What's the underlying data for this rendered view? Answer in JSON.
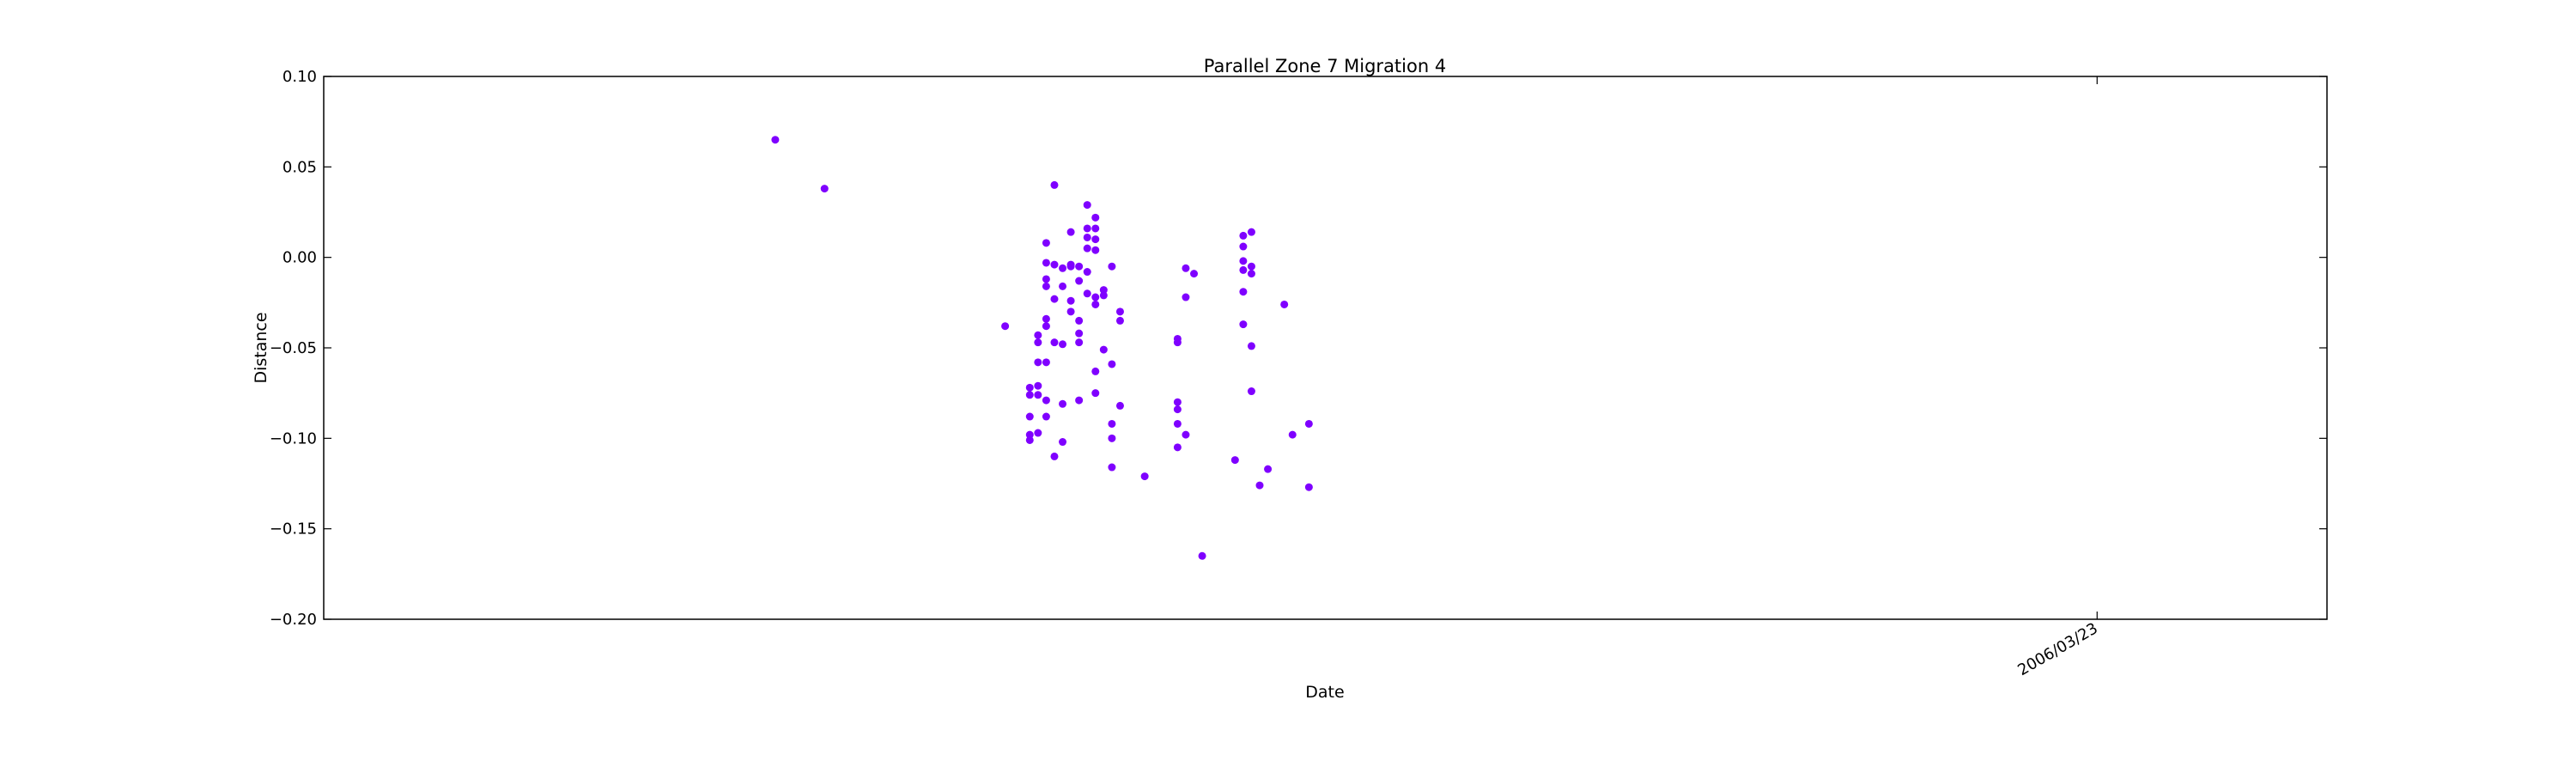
{
  "chart_data": {
    "type": "scatter",
    "title": "Parallel Zone 7 Migration 4",
    "xlabel": "Date",
    "ylabel": "Distance",
    "ylim": [
      -0.2,
      0.1
    ],
    "yticks": [
      0.1,
      0.05,
      0.0,
      -0.05,
      -0.1,
      -0.15,
      -0.2
    ],
    "ytick_labels": [
      "0.10",
      "0.05",
      "0.00",
      "−0.05",
      "−0.10",
      "−0.15",
      "−0.20"
    ],
    "xlim": [
      "2005-08-19",
      "2006-04-20"
    ],
    "xticks": [
      "2006-03-23"
    ],
    "xtick_labels": [
      "2006/03/23"
    ],
    "grid": false,
    "marker_color": "#7f00ff",
    "series": [
      {
        "points": [
          [
            "2005-10-13",
            0.065
          ],
          [
            "2005-10-19",
            0.038
          ],
          [
            "2005-11-10",
            -0.038
          ],
          [
            "2005-11-13",
            -0.072
          ],
          [
            "2005-11-13",
            -0.076
          ],
          [
            "2005-11-13",
            -0.088
          ],
          [
            "2005-11-13",
            -0.098
          ],
          [
            "2005-11-13",
            -0.101
          ],
          [
            "2005-11-14",
            -0.076
          ],
          [
            "2005-11-14",
            -0.071
          ],
          [
            "2005-11-14",
            -0.058
          ],
          [
            "2005-11-14",
            -0.047
          ],
          [
            "2005-11-14",
            -0.043
          ],
          [
            "2005-11-14",
            -0.097
          ],
          [
            "2005-11-15",
            -0.079
          ],
          [
            "2005-11-15",
            -0.058
          ],
          [
            "2005-11-15",
            -0.088
          ],
          [
            "2005-11-15",
            0.008
          ],
          [
            "2005-11-15",
            -0.012
          ],
          [
            "2005-11-15",
            -0.016
          ],
          [
            "2005-11-15",
            -0.003
          ],
          [
            "2005-11-15",
            -0.034
          ],
          [
            "2005-11-15",
            -0.038
          ],
          [
            "2005-11-16",
            -0.004
          ],
          [
            "2005-11-16",
            -0.047
          ],
          [
            "2005-11-16",
            -0.023
          ],
          [
            "2005-11-16",
            0.04
          ],
          [
            "2005-11-16",
            -0.11
          ],
          [
            "2005-11-17",
            -0.081
          ],
          [
            "2005-11-17",
            -0.016
          ],
          [
            "2005-11-17",
            -0.048
          ],
          [
            "2005-11-17",
            -0.006
          ],
          [
            "2005-11-17",
            -0.102
          ],
          [
            "2005-11-18",
            -0.004
          ],
          [
            "2005-11-18",
            -0.024
          ],
          [
            "2005-11-18",
            -0.03
          ],
          [
            "2005-11-18",
            0.014
          ],
          [
            "2005-11-18",
            -0.005
          ],
          [
            "2005-11-19",
            -0.079
          ],
          [
            "2005-11-19",
            -0.035
          ],
          [
            "2005-11-19",
            -0.042
          ],
          [
            "2005-11-19",
            -0.047
          ],
          [
            "2005-11-19",
            -0.005
          ],
          [
            "2005-11-19",
            -0.013
          ],
          [
            "2005-11-20",
            0.029
          ],
          [
            "2005-11-20",
            0.016
          ],
          [
            "2005-11-20",
            0.011
          ],
          [
            "2005-11-20",
            0.005
          ],
          [
            "2005-11-20",
            -0.008
          ],
          [
            "2005-11-20",
            -0.02
          ],
          [
            "2005-11-21",
            0.022
          ],
          [
            "2005-11-21",
            0.016
          ],
          [
            "2005-11-21",
            0.01
          ],
          [
            "2005-11-21",
            0.004
          ],
          [
            "2005-11-21",
            -0.022
          ],
          [
            "2005-11-21",
            -0.026
          ],
          [
            "2005-11-21",
            -0.063
          ],
          [
            "2005-11-21",
            -0.075
          ],
          [
            "2005-11-22",
            -0.018
          ],
          [
            "2005-11-22",
            -0.021
          ],
          [
            "2005-11-22",
            -0.051
          ],
          [
            "2005-11-23",
            -0.092
          ],
          [
            "2005-11-23",
            -0.1
          ],
          [
            "2005-11-23",
            -0.059
          ],
          [
            "2005-11-23",
            -0.005
          ],
          [
            "2005-11-23",
            -0.116
          ],
          [
            "2005-11-24",
            -0.03
          ],
          [
            "2005-11-24",
            -0.035
          ],
          [
            "2005-11-24",
            -0.082
          ],
          [
            "2005-11-27",
            -0.121
          ],
          [
            "2005-12-01",
            -0.105
          ],
          [
            "2005-12-01",
            -0.092
          ],
          [
            "2005-12-01",
            -0.084
          ],
          [
            "2005-12-01",
            -0.08
          ],
          [
            "2005-12-01",
            -0.045
          ],
          [
            "2005-12-01",
            -0.047
          ],
          [
            "2005-12-02",
            -0.098
          ],
          [
            "2005-12-02",
            -0.006
          ],
          [
            "2005-12-02",
            -0.022
          ],
          [
            "2005-12-03",
            -0.009
          ],
          [
            "2005-12-04",
            -0.165
          ],
          [
            "2005-12-08",
            -0.112
          ],
          [
            "2005-12-09",
            0.006
          ],
          [
            "2005-12-09",
            0.012
          ],
          [
            "2005-12-09",
            -0.002
          ],
          [
            "2005-12-09",
            -0.007
          ],
          [
            "2005-12-09",
            -0.019
          ],
          [
            "2005-12-09",
            -0.037
          ],
          [
            "2005-12-10",
            0.014
          ],
          [
            "2005-12-10",
            -0.005
          ],
          [
            "2005-12-10",
            -0.009
          ],
          [
            "2005-12-10",
            -0.049
          ],
          [
            "2005-12-10",
            -0.074
          ],
          [
            "2005-12-11",
            -0.126
          ],
          [
            "2005-12-12",
            -0.117
          ],
          [
            "2005-12-14",
            -0.026
          ],
          [
            "2005-12-15",
            -0.098
          ],
          [
            "2005-12-17",
            -0.092
          ],
          [
            "2005-12-17",
            -0.127
          ]
        ]
      }
    ]
  }
}
